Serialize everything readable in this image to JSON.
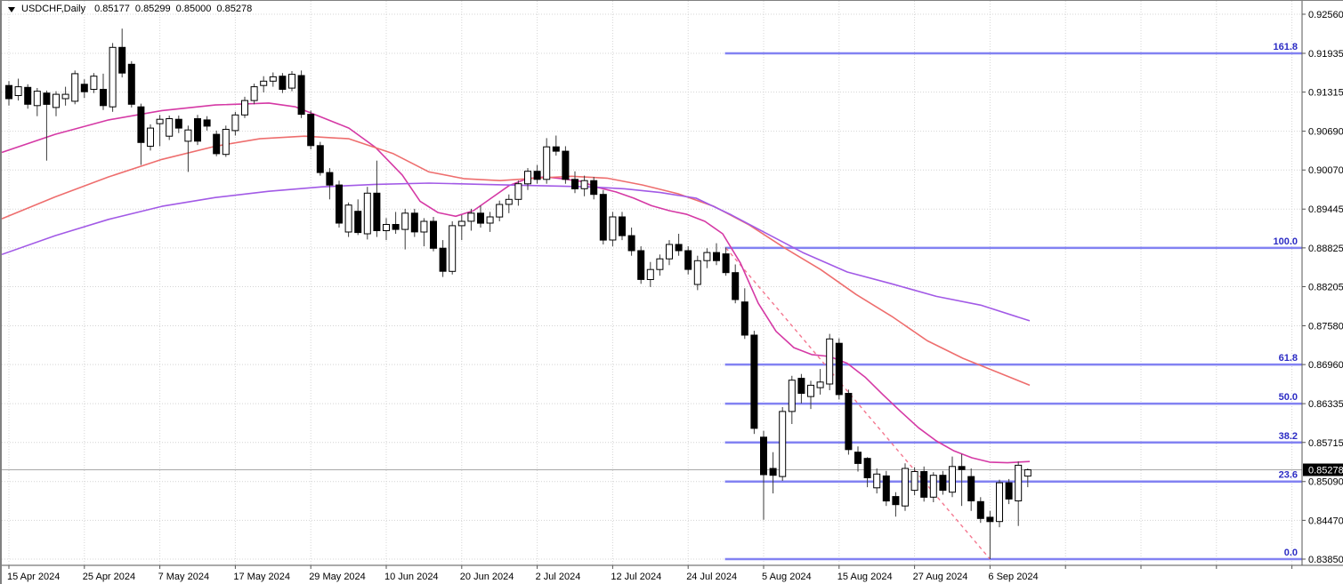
{
  "header": {
    "symbol": "USDCHF,Daily",
    "open": "0.85177",
    "high": "0.85299",
    "low": "0.85000",
    "close": "0.85278"
  },
  "price_axis": {
    "ticks": [
      "0.92560",
      "0.91935",
      "0.91315",
      "0.90690",
      "0.90070",
      "0.89445",
      "0.88825",
      "0.88205",
      "0.87580",
      "0.86960",
      "0.86335",
      "0.85715",
      "0.85090",
      "0.84470",
      "0.83850"
    ],
    "current_price": "0.85278"
  },
  "time_axis": {
    "ticks": [
      {
        "index": 0,
        "label": "15 Apr 2024"
      },
      {
        "index": 8,
        "label": "25 Apr 2024"
      },
      {
        "index": 16,
        "label": "7 May 2024"
      },
      {
        "index": 24,
        "label": "17 May 2024"
      },
      {
        "index": 32,
        "label": "29 May 2024"
      },
      {
        "index": 40,
        "label": "10 Jun 2024"
      },
      {
        "index": 48,
        "label": "20 Jun 2024"
      },
      {
        "index": 56,
        "label": "2 Jul 2024"
      },
      {
        "index": 64,
        "label": "12 Jul 2024"
      },
      {
        "index": 72,
        "label": "24 Jul 2024"
      },
      {
        "index": 80,
        "label": "5 Aug 2024"
      },
      {
        "index": 88,
        "label": "15 Aug 2024"
      },
      {
        "index": 96,
        "label": "27 Aug 2024"
      },
      {
        "index": 104,
        "label": "6 Sep 2024"
      }
    ],
    "extra_grid_indices": [
      112,
      120,
      128,
      136
    ]
  },
  "fibonacci": {
    "start_index": 76,
    "end_index": 104,
    "levels": [
      {
        "label": "161.8",
        "price": 0.91935
      },
      {
        "label": "100.0",
        "price": 0.88825
      },
      {
        "label": "61.8",
        "price": 0.8696
      },
      {
        "label": "50.0",
        "price": 0.86335
      },
      {
        "label": "38.2",
        "price": 0.85715
      },
      {
        "label": "23.6",
        "price": 0.8509
      },
      {
        "label": "0.0",
        "price": 0.8385
      }
    ],
    "line_color": "#8282f2",
    "label_color": "#2b2bc4"
  },
  "chart_data": {
    "type": "candlestick",
    "title": "USDCHF Daily candlestick chart with moving averages and Fibonacci retracement",
    "ylim": [
      0.8385,
      0.9256
    ],
    "grid": true,
    "last_candle_ohlc": {
      "open": 0.85177,
      "high": 0.85299,
      "low": 0.85,
      "close": 0.85278
    },
    "candles": [
      [
        0.9142,
        0.9149,
        0.911,
        0.9121
      ],
      [
        0.9126,
        0.9153,
        0.9118,
        0.914
      ],
      [
        0.9139,
        0.9144,
        0.9105,
        0.9112
      ],
      [
        0.911,
        0.9138,
        0.9093,
        0.9133
      ],
      [
        0.913,
        0.9134,
        0.9022,
        0.9112
      ],
      [
        0.9107,
        0.9133,
        0.9093,
        0.9128
      ],
      [
        0.9121,
        0.914,
        0.911,
        0.9128
      ],
      [
        0.9117,
        0.9166,
        0.9112,
        0.9161
      ],
      [
        0.9144,
        0.9152,
        0.9122,
        0.9132
      ],
      [
        0.9136,
        0.9162,
        0.913,
        0.9157
      ],
      [
        0.9136,
        0.9161,
        0.9103,
        0.911
      ],
      [
        0.9108,
        0.921,
        0.91,
        0.9203
      ],
      [
        0.9203,
        0.9233,
        0.9155,
        0.9162
      ],
      [
        0.9176,
        0.9181,
        0.9107,
        0.9112
      ],
      [
        0.9108,
        0.9113,
        0.9015,
        0.9051
      ],
      [
        0.9045,
        0.908,
        0.9038,
        0.9074
      ],
      [
        0.9081,
        0.9095,
        0.9045,
        0.9088
      ],
      [
        0.9061,
        0.9094,
        0.9055,
        0.9089
      ],
      [
        0.9088,
        0.9094,
        0.9066,
        0.9074
      ],
      [
        0.9053,
        0.9078,
        0.9004,
        0.9071
      ],
      [
        0.9089,
        0.9095,
        0.9047,
        0.9053
      ],
      [
        0.9087,
        0.9093,
        0.907,
        0.9077
      ],
      [
        0.9064,
        0.907,
        0.9029,
        0.9033
      ],
      [
        0.9032,
        0.9078,
        0.9028,
        0.9072
      ],
      [
        0.907,
        0.91,
        0.9062,
        0.9095
      ],
      [
        0.9095,
        0.9124,
        0.909,
        0.9118
      ],
      [
        0.9118,
        0.9145,
        0.9112,
        0.914
      ],
      [
        0.9142,
        0.9157,
        0.9131,
        0.9149
      ],
      [
        0.9149,
        0.9163,
        0.914,
        0.9156
      ],
      [
        0.9157,
        0.9162,
        0.913,
        0.9136
      ],
      [
        0.9138,
        0.9165,
        0.9133,
        0.916
      ],
      [
        0.9158,
        0.9166,
        0.909,
        0.9096
      ],
      [
        0.9096,
        0.9102,
        0.904,
        0.9046
      ],
      [
        0.9046,
        0.9052,
        0.8998,
        0.9003
      ],
      [
        0.9003,
        0.901,
        0.896,
        0.8983
      ],
      [
        0.8983,
        0.899,
        0.8915,
        0.8922
      ],
      [
        0.8908,
        0.8955,
        0.89,
        0.8951
      ],
      [
        0.8941,
        0.896,
        0.8903,
        0.8907
      ],
      [
        0.8905,
        0.898,
        0.8896,
        0.897
      ],
      [
        0.897,
        0.9022,
        0.89,
        0.891
      ],
      [
        0.891,
        0.893,
        0.8895,
        0.892
      ],
      [
        0.892,
        0.894,
        0.8905,
        0.8912
      ],
      [
        0.8912,
        0.8945,
        0.888,
        0.8938
      ],
      [
        0.8938,
        0.8945,
        0.89,
        0.8908
      ],
      [
        0.8908,
        0.893,
        0.8885,
        0.8925
      ],
      [
        0.8925,
        0.8932,
        0.8877,
        0.8882
      ],
      [
        0.8882,
        0.8895,
        0.8836,
        0.8845
      ],
      [
        0.8845,
        0.8925,
        0.884,
        0.8918
      ],
      [
        0.8918,
        0.8935,
        0.8895,
        0.8925
      ],
      [
        0.8925,
        0.8945,
        0.891,
        0.8938
      ],
      [
        0.8938,
        0.895,
        0.8915,
        0.8922
      ],
      [
        0.8922,
        0.894,
        0.8908,
        0.8932
      ],
      [
        0.8932,
        0.8958,
        0.8925,
        0.8952
      ],
      [
        0.8952,
        0.8968,
        0.8938,
        0.896
      ],
      [
        0.896,
        0.899,
        0.895,
        0.8985
      ],
      [
        0.8985,
        0.901,
        0.8975,
        0.9005
      ],
      [
        0.9005,
        0.9015,
        0.8985,
        0.8992
      ],
      [
        0.8992,
        0.9058,
        0.8985,
        0.9044
      ],
      [
        0.9044,
        0.9062,
        0.903,
        0.9037
      ],
      [
        0.9037,
        0.9045,
        0.8985,
        0.8992
      ],
      [
        0.8992,
        0.9005,
        0.897,
        0.8977
      ],
      [
        0.8977,
        0.8998,
        0.8965,
        0.899
      ],
      [
        0.899,
        0.8996,
        0.896,
        0.8968
      ],
      [
        0.8968,
        0.8975,
        0.8888,
        0.8895
      ],
      [
        0.8895,
        0.894,
        0.8885,
        0.8932
      ],
      [
        0.8932,
        0.894,
        0.8895,
        0.8902
      ],
      [
        0.8902,
        0.8915,
        0.887,
        0.8878
      ],
      [
        0.8878,
        0.8885,
        0.8825,
        0.8832
      ],
      [
        0.8832,
        0.886,
        0.882,
        0.8848
      ],
      [
        0.8848,
        0.8872,
        0.8838,
        0.8865
      ],
      [
        0.8865,
        0.8895,
        0.8855,
        0.8888
      ],
      [
        0.8888,
        0.8905,
        0.887,
        0.8878
      ],
      [
        0.8878,
        0.8885,
        0.884,
        0.8848
      ],
      [
        0.8824,
        0.887,
        0.8815,
        0.8862
      ],
      [
        0.8862,
        0.8882,
        0.885,
        0.8875
      ],
      [
        0.8875,
        0.889,
        0.8855,
        0.8862
      ],
      [
        0.8873,
        0.8883,
        0.8838,
        0.8843
      ],
      [
        0.8843,
        0.8856,
        0.8794,
        0.88
      ],
      [
        0.8796,
        0.8818,
        0.8737,
        0.8743
      ],
      [
        0.8743,
        0.875,
        0.8585,
        0.8594
      ],
      [
        0.858,
        0.859,
        0.8448,
        0.852
      ],
      [
        0.853,
        0.8556,
        0.849,
        0.8519
      ],
      [
        0.8517,
        0.8628,
        0.851,
        0.8621
      ],
      [
        0.8621,
        0.8678,
        0.8601,
        0.8671
      ],
      [
        0.8674,
        0.8681,
        0.8634,
        0.865
      ],
      [
        0.8645,
        0.867,
        0.8625,
        0.8663
      ],
      [
        0.8659,
        0.8689,
        0.8648,
        0.8668
      ],
      [
        0.8665,
        0.8745,
        0.8655,
        0.8737
      ],
      [
        0.873,
        0.8738,
        0.864,
        0.8648
      ],
      [
        0.865,
        0.8656,
        0.8552,
        0.856
      ],
      [
        0.8556,
        0.8565,
        0.8525,
        0.8538
      ],
      [
        0.8546,
        0.8548,
        0.85,
        0.8515
      ],
      [
        0.8499,
        0.853,
        0.849,
        0.8521
      ],
      [
        0.8518,
        0.8526,
        0.847,
        0.8478
      ],
      [
        0.8485,
        0.8492,
        0.8453,
        0.8472
      ],
      [
        0.847,
        0.8538,
        0.8462,
        0.853
      ],
      [
        0.8495,
        0.8532,
        0.8487,
        0.8525
      ],
      [
        0.8525,
        0.8533,
        0.8477,
        0.8484
      ],
      [
        0.8484,
        0.8524,
        0.8476,
        0.8519
      ],
      [
        0.8519,
        0.8526,
        0.8488,
        0.8495
      ],
      [
        0.8492,
        0.8549,
        0.8484,
        0.8533
      ],
      [
        0.8533,
        0.8553,
        0.847,
        0.8528
      ],
      [
        0.8517,
        0.853,
        0.8462,
        0.8478
      ],
      [
        0.8477,
        0.8484,
        0.8443,
        0.845
      ],
      [
        0.8452,
        0.8462,
        0.8385,
        0.8445
      ],
      [
        0.8445,
        0.8512,
        0.8436,
        0.8507
      ],
      [
        0.8507,
        0.8513,
        0.8473,
        0.8481
      ],
      [
        0.8478,
        0.8541,
        0.8438,
        0.8535
      ],
      [
        0.85177,
        0.85299,
        0.85,
        0.85278
      ]
    ],
    "moving_averages": [
      {
        "name": "ma-fast-magenta",
        "color": "#d539a5",
        "style": "solid",
        "points": [
          [
            0,
            0.9035
          ],
          [
            60,
            0.9064
          ],
          [
            120,
            0.9087
          ],
          [
            180,
            0.9102
          ],
          [
            240,
            0.9111
          ],
          [
            300,
            0.9114
          ],
          [
            330,
            0.9108
          ],
          [
            360,
            0.9091
          ],
          [
            390,
            0.9074
          ],
          [
            420,
            0.9043
          ],
          [
            450,
            0.8999
          ],
          [
            470,
            0.8957
          ],
          [
            490,
            0.8939
          ],
          [
            510,
            0.8933
          ],
          [
            530,
            0.8942
          ],
          [
            550,
            0.8962
          ],
          [
            570,
            0.8982
          ],
          [
            590,
            0.8993
          ],
          [
            610,
            0.8996
          ],
          [
            630,
            0.8993
          ],
          [
            650,
            0.8989
          ],
          [
            670,
            0.8979
          ],
          [
            690,
            0.8972
          ],
          [
            710,
            0.8962
          ],
          [
            730,
            0.895
          ],
          [
            750,
            0.8942
          ],
          [
            770,
            0.8936
          ],
          [
            790,
            0.8925
          ],
          [
            810,
            0.8905
          ],
          [
            830,
            0.8858
          ],
          [
            850,
            0.8794
          ],
          [
            870,
            0.8749
          ],
          [
            890,
            0.8723
          ],
          [
            910,
            0.8712
          ],
          [
            930,
            0.8709
          ],
          [
            950,
            0.8698
          ],
          [
            970,
            0.8676
          ],
          [
            990,
            0.8648
          ],
          [
            1010,
            0.8621
          ],
          [
            1030,
            0.8595
          ],
          [
            1050,
            0.8574
          ],
          [
            1070,
            0.8558
          ],
          [
            1090,
            0.8547
          ],
          [
            1110,
            0.854
          ],
          [
            1130,
            0.8539
          ],
          [
            1155,
            0.8541
          ]
        ]
      },
      {
        "name": "ma-mid-red",
        "color": "#ee6e6e",
        "style": "solid",
        "points": [
          [
            0,
            0.8929
          ],
          [
            60,
            0.8964
          ],
          [
            120,
            0.8996
          ],
          [
            180,
            0.9024
          ],
          [
            240,
            0.9045
          ],
          [
            290,
            0.9057
          ],
          [
            340,
            0.9061
          ],
          [
            390,
            0.9057
          ],
          [
            440,
            0.9033
          ],
          [
            480,
            0.9004
          ],
          [
            520,
            0.8993
          ],
          [
            560,
            0.899
          ],
          [
            600,
            0.8994
          ],
          [
            640,
            0.8997
          ],
          [
            680,
            0.8994
          ],
          [
            720,
            0.8983
          ],
          [
            760,
            0.8969
          ],
          [
            800,
            0.8949
          ],
          [
            840,
            0.8919
          ],
          [
            880,
            0.8882
          ],
          [
            920,
            0.8848
          ],
          [
            960,
            0.8808
          ],
          [
            1000,
            0.8773
          ],
          [
            1040,
            0.8734
          ],
          [
            1080,
            0.8706
          ],
          [
            1120,
            0.8683
          ],
          [
            1155,
            0.8663
          ]
        ]
      },
      {
        "name": "ma-slow-violet",
        "color": "#a25ae6",
        "style": "solid",
        "points": [
          [
            0,
            0.8872
          ],
          [
            60,
            0.8902
          ],
          [
            120,
            0.8928
          ],
          [
            180,
            0.8949
          ],
          [
            240,
            0.8963
          ],
          [
            300,
            0.8973
          ],
          [
            360,
            0.898
          ],
          [
            420,
            0.8984
          ],
          [
            480,
            0.8986
          ],
          [
            540,
            0.8984
          ],
          [
            600,
            0.8982
          ],
          [
            660,
            0.898
          ],
          [
            700,
            0.8977
          ],
          [
            740,
            0.8971
          ],
          [
            780,
            0.8962
          ],
          [
            820,
            0.8935
          ],
          [
            852,
            0.8911
          ],
          [
            900,
            0.8875
          ],
          [
            950,
            0.8844
          ],
          [
            1000,
            0.8825
          ],
          [
            1050,
            0.8805
          ],
          [
            1100,
            0.8791
          ],
          [
            1155,
            0.8766
          ]
        ]
      }
    ],
    "trendline": {
      "name": "fib-swing-dashed-line",
      "color": "#f4778f",
      "style": "dashed",
      "from": {
        "index": 76,
        "price": 0.88825
      },
      "to": {
        "index": 104,
        "price": 0.8385
      }
    }
  },
  "colors": {
    "background": "#ffffff",
    "grid": "#d4d4d4",
    "bull_body": "#ffffff",
    "bear_body": "#000000",
    "candle_border": "#000000",
    "wick": "#3a3a3a",
    "axis_line": "#555555",
    "axis_text": "#000000",
    "current_price_line": "#a8a8a8",
    "badge_bg": "#000000",
    "badge_text": "#ffffff"
  }
}
